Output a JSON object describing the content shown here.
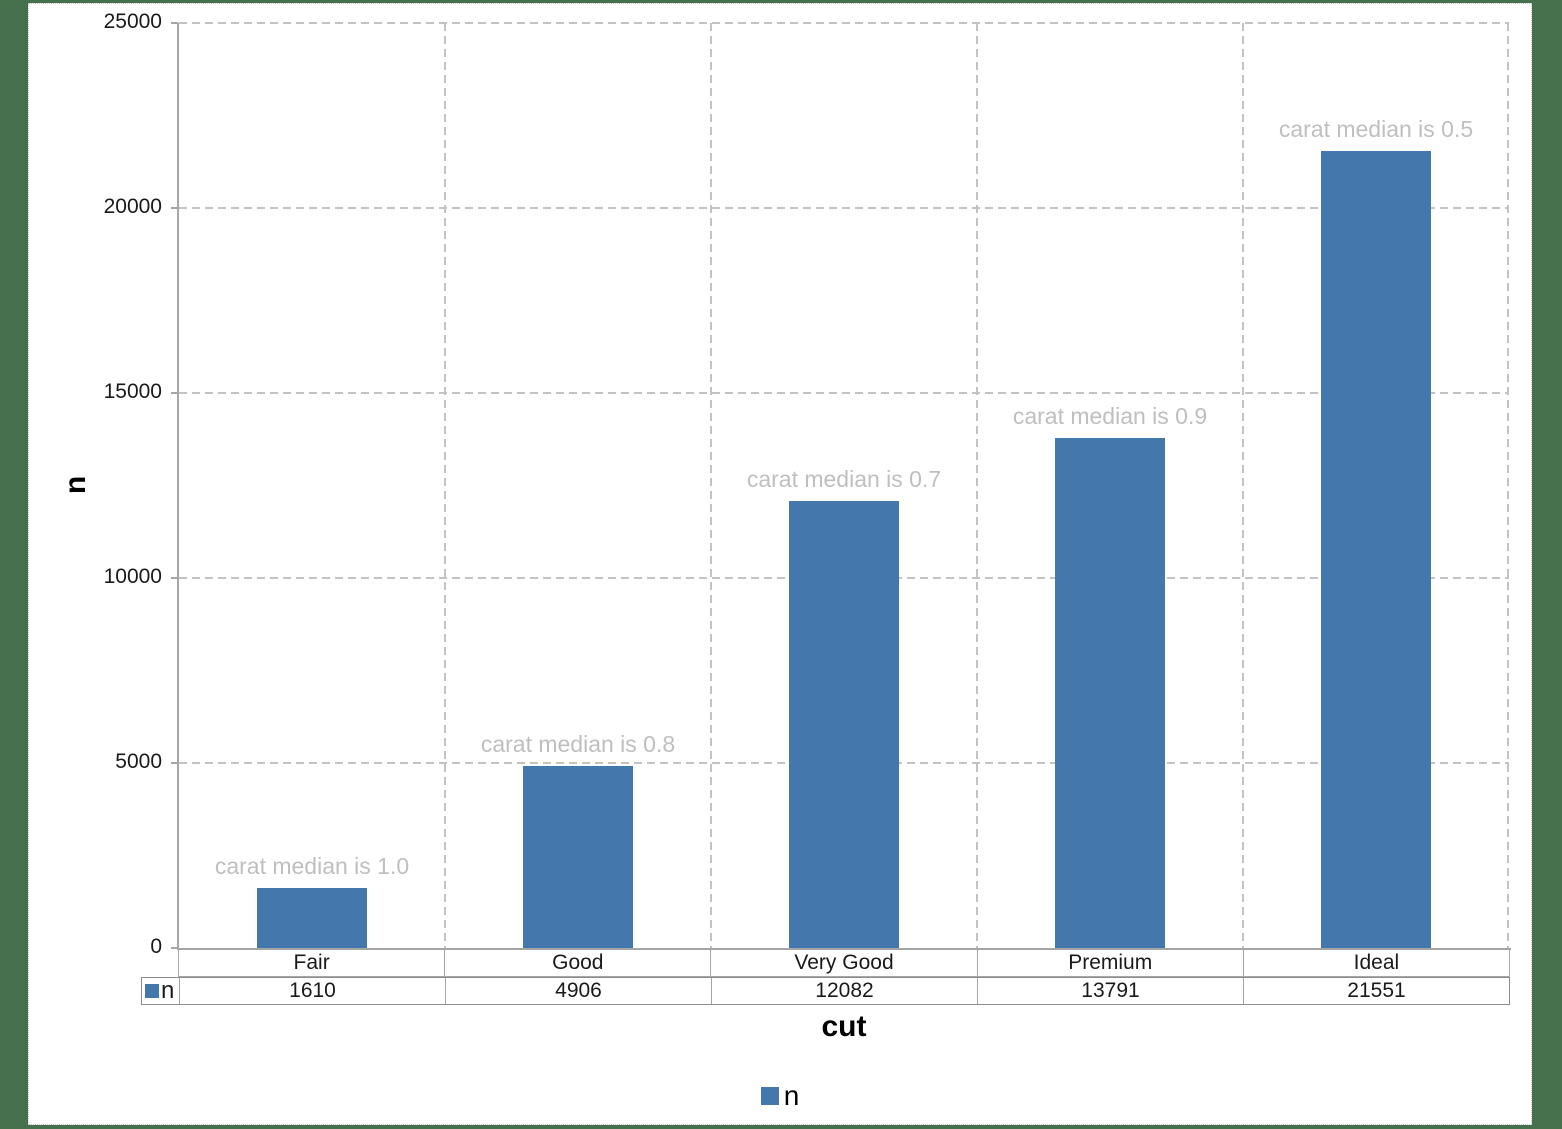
{
  "chart_data": {
    "type": "bar",
    "title": "",
    "categories": [
      "Fair",
      "Good",
      "Very Good",
      "Premium",
      "Ideal"
    ],
    "values": [
      1610,
      4906,
      12082,
      13791,
      21551
    ],
    "annotations": [
      "carat median is 1.0",
      "carat median is 0.8",
      "carat median is 0.7",
      "carat median is 0.9",
      "carat median is 0.5"
    ],
    "series_name": "n",
    "xlabel": "cut",
    "ylabel": "n",
    "ylim": [
      0,
      25000
    ],
    "yticks": [
      0,
      5000,
      10000,
      15000,
      20000,
      25000
    ],
    "grid": "dashed",
    "legend_position": "bottom",
    "data_table_shown": true,
    "colors": {
      "bar": "#4478ac",
      "annotation": "#bfbfbf",
      "gridline": "#c3c3c3",
      "axis": "#a6a6a6",
      "table_border": "#a6a6a6",
      "table_border_outer": "#8c8c8c",
      "surround": "#47704d",
      "text": "#1a1a1a"
    }
  }
}
